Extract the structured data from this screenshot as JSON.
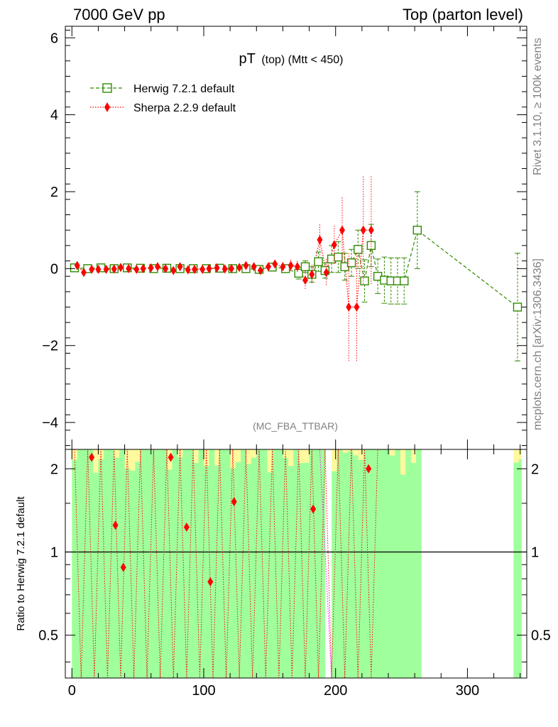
{
  "header": {
    "left": "7000 GeV pp",
    "right": "Top (parton level)"
  },
  "side": {
    "rivet": "Rivet 3.1.10, ≥ 100k events",
    "source": "mcplots.cern.ch [arXiv:1306.3436]"
  },
  "watermark": "(MC_FBA_TTBAR)",
  "chart_data": [
    {
      "type": "line",
      "title_main": "pT",
      "title_sub": "(top) (Mtt < 450)",
      "xlim": [
        -5,
        345
      ],
      "ylim": [
        -4.7,
        6.3
      ],
      "ticks_y": [
        -4,
        -2,
        0,
        2,
        4,
        6
      ],
      "tick_labels_y": [
        "−4",
        "−2",
        "0",
        "2",
        "4",
        "6"
      ],
      "legend_placement": "top-left",
      "series": [
        {
          "name": "Herwig 7.2.1 default",
          "color": "#2e8b00",
          "marker": "open-square",
          "x": [
            2,
            12,
            22,
            32,
            42,
            52,
            62,
            72,
            82,
            92,
            102,
            112,
            122,
            132,
            142,
            152,
            162,
            172,
            177,
            182,
            187,
            192,
            197,
            202,
            207,
            212,
            217,
            222,
            227,
            232,
            237,
            242,
            247,
            252,
            262,
            338
          ],
          "y": [
            0.02,
            0.0,
            0.02,
            0.0,
            0.02,
            0.01,
            0.0,
            0.01,
            0.0,
            0.0,
            0.0,
            0.01,
            0.0,
            0.0,
            -0.02,
            0.04,
            0.0,
            -0.12,
            0.05,
            -0.15,
            0.18,
            -0.05,
            0.25,
            0.3,
            0.05,
            0.15,
            0.5,
            -0.32,
            0.6,
            -0.2,
            -0.3,
            -0.32,
            -0.32,
            -0.32,
            1.0,
            -1.0
          ],
          "err": [
            0.05,
            0.05,
            0.05,
            0.05,
            0.05,
            0.05,
            0.05,
            0.05,
            0.05,
            0.05,
            0.05,
            0.05,
            0.05,
            0.05,
            0.05,
            0.06,
            0.08,
            0.15,
            0.15,
            0.2,
            0.25,
            0.2,
            0.35,
            0.4,
            0.35,
            0.35,
            0.5,
            0.55,
            0.55,
            0.45,
            0.6,
            0.6,
            0.6,
            0.6,
            1.0,
            1.4
          ]
        },
        {
          "name": "Sherpa 2.2.9 default",
          "color": "#ff0000",
          "marker": "filled-diamond",
          "x": [
            4,
            9,
            15,
            20,
            26,
            32,
            37,
            43,
            49,
            54,
            60,
            65,
            71,
            77,
            82,
            88,
            93,
            99,
            104,
            110,
            116,
            121,
            127,
            132,
            138,
            143,
            149,
            154,
            160,
            166,
            171,
            177,
            182,
            188,
            193,
            199,
            205,
            210,
            216,
            221,
            227
          ],
          "y": [
            0.08,
            -0.1,
            -0.02,
            -0.02,
            -0.02,
            -0.01,
            0.03,
            0.0,
            -0.02,
            0.0,
            0.02,
            0.05,
            0.0,
            -0.05,
            0.05,
            -0.03,
            -0.02,
            -0.02,
            0.0,
            0.02,
            -0.01,
            0.0,
            0.03,
            0.08,
            0.05,
            -0.05,
            0.05,
            0.12,
            0.05,
            0.08,
            0.05,
            -0.3,
            -0.15,
            0.75,
            -0.1,
            0.62,
            1.0,
            -1.0,
            -1.0,
            1.0,
            1.0
          ],
          "err": [
            0.08,
            0.08,
            0.07,
            0.07,
            0.07,
            0.07,
            0.07,
            0.07,
            0.07,
            0.07,
            0.07,
            0.07,
            0.07,
            0.07,
            0.07,
            0.07,
            0.07,
            0.07,
            0.07,
            0.07,
            0.07,
            0.07,
            0.07,
            0.08,
            0.08,
            0.08,
            0.1,
            0.1,
            0.12,
            0.15,
            0.15,
            0.25,
            0.25,
            0.4,
            0.35,
            0.5,
            0.85,
            1.4,
            1.4,
            1.4,
            1.4
          ]
        }
      ]
    },
    {
      "type": "line",
      "ylabel": "Ratio to Herwig 7.2.1 default",
      "xlim": [
        -5,
        345
      ],
      "ylim": [
        0.35,
        2.35
      ],
      "ticks_y": [
        0.5,
        1,
        2
      ],
      "tick_labels_y": [
        "0.5",
        "1",
        "2"
      ],
      "ticks_x": [
        0,
        100,
        200,
        300
      ],
      "tick_labels_x": [
        "0",
        "100",
        "200",
        "300"
      ],
      "ratio_points": {
        "name": "Sherpa 2.2.9 default",
        "x": [
          15,
          33,
          39,
          75,
          87,
          105,
          123,
          183,
          225
        ],
        "y": [
          2.2,
          1.25,
          0.88,
          2.2,
          1.23,
          0.78,
          1.52,
          1.43,
          2.0
        ]
      },
      "bands": {
        "green": "#a0ff9d",
        "yellow": "#fff99d",
        "ranges": [
          [
            0,
            192
          ],
          [
            197,
            265
          ],
          [
            335,
            341
          ]
        ]
      }
    }
  ]
}
